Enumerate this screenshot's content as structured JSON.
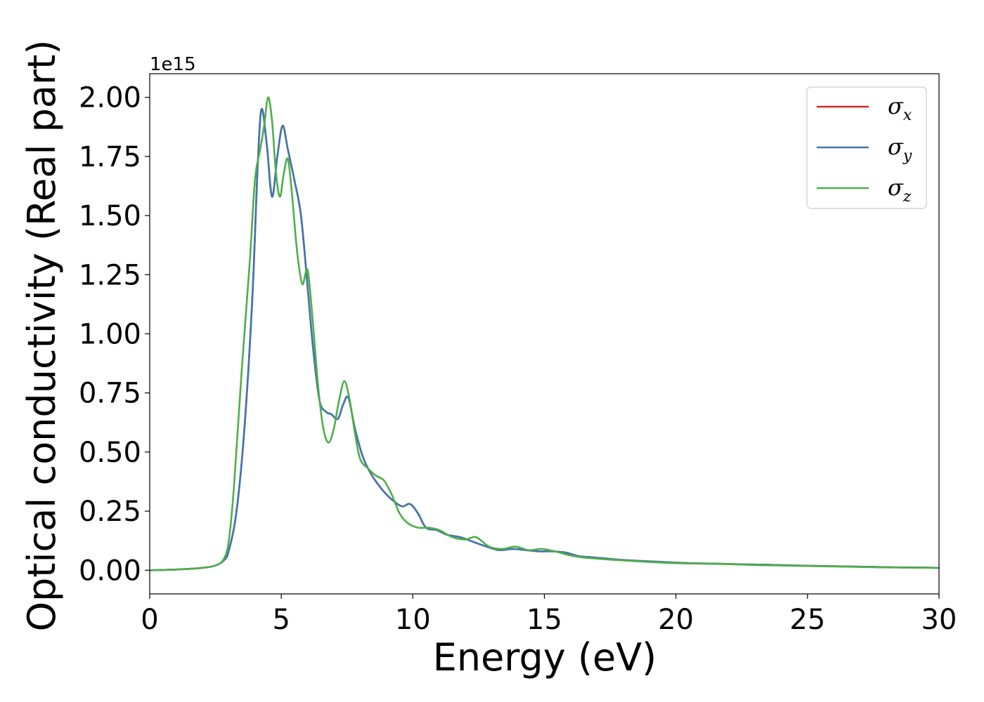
{
  "chart_data": {
    "type": "line",
    "xlabel": "Energy (eV)",
    "ylabel": "Optical conductivity (Real part)",
    "y_offset_label": "1e15",
    "xlim": [
      0,
      30
    ],
    "ylim": [
      -0.1,
      2.1
    ],
    "x_ticks": [
      0,
      5,
      10,
      15,
      20,
      25,
      30
    ],
    "x_tick_labels": [
      "0",
      "5",
      "10",
      "15",
      "20",
      "25",
      "30"
    ],
    "y_ticks": [
      0.0,
      0.25,
      0.5,
      0.75,
      1.0,
      1.25,
      1.5,
      1.75,
      2.0
    ],
    "y_tick_labels": [
      "0.00",
      "0.25",
      "0.50",
      "0.75",
      "1.00",
      "1.25",
      "1.50",
      "1.75",
      "2.00"
    ],
    "grid": false,
    "legend_position": "top-right",
    "series": [
      {
        "name": "σx",
        "legend_main": "σ",
        "legend_sub": "x",
        "color": "#d62728",
        "x": [
          0,
          1,
          2,
          2.5,
          2.8,
          3.0,
          3.3,
          3.6,
          3.9,
          4.1,
          4.25,
          4.45,
          4.65,
          4.85,
          5.05,
          5.25,
          5.5,
          5.75,
          6.0,
          6.2,
          6.45,
          6.7,
          6.9,
          7.15,
          7.35,
          7.55,
          7.8,
          8.1,
          8.4,
          8.7,
          9.0,
          9.3,
          9.6,
          9.9,
          10.2,
          10.5,
          10.9,
          11.3,
          11.8,
          12.3,
          12.8,
          13.3,
          13.8,
          14.3,
          14.8,
          15.3,
          15.8,
          16.3,
          16.8,
          17.3,
          17.8,
          18.5,
          19.5,
          20.5,
          21.5,
          22.5,
          23.5,
          24.5,
          25.5,
          26.5,
          27.5,
          28.5,
          29.5,
          30
        ],
        "values": [
          0,
          0.003,
          0.01,
          0.02,
          0.04,
          0.08,
          0.25,
          0.6,
          1.15,
          1.7,
          1.95,
          1.8,
          1.58,
          1.75,
          1.88,
          1.78,
          1.65,
          1.5,
          1.2,
          0.95,
          0.72,
          0.67,
          0.66,
          0.64,
          0.7,
          0.73,
          0.6,
          0.48,
          0.41,
          0.36,
          0.32,
          0.29,
          0.27,
          0.28,
          0.24,
          0.18,
          0.17,
          0.15,
          0.14,
          0.12,
          0.1,
          0.085,
          0.09,
          0.085,
          0.08,
          0.08,
          0.075,
          0.06,
          0.055,
          0.05,
          0.045,
          0.04,
          0.035,
          0.03,
          0.028,
          0.025,
          0.023,
          0.02,
          0.018,
          0.016,
          0.014,
          0.012,
          0.011,
          0.01
        ]
      },
      {
        "name": "σy",
        "legend_main": "σ",
        "legend_sub": "y",
        "color": "#3f77b0",
        "x": [
          0,
          1,
          2,
          2.5,
          2.8,
          3.0,
          3.3,
          3.6,
          3.9,
          4.1,
          4.25,
          4.45,
          4.65,
          4.85,
          5.05,
          5.25,
          5.5,
          5.75,
          6.0,
          6.2,
          6.45,
          6.7,
          6.9,
          7.15,
          7.35,
          7.55,
          7.8,
          8.1,
          8.4,
          8.7,
          9.0,
          9.3,
          9.6,
          9.9,
          10.2,
          10.5,
          10.9,
          11.3,
          11.8,
          12.3,
          12.8,
          13.3,
          13.8,
          14.3,
          14.8,
          15.3,
          15.8,
          16.3,
          16.8,
          17.3,
          17.8,
          18.5,
          19.5,
          20.5,
          21.5,
          22.5,
          23.5,
          24.5,
          25.5,
          26.5,
          27.5,
          28.5,
          29.5,
          30
        ],
        "values": [
          0,
          0.003,
          0.01,
          0.02,
          0.04,
          0.08,
          0.25,
          0.6,
          1.15,
          1.7,
          1.95,
          1.8,
          1.58,
          1.75,
          1.88,
          1.78,
          1.65,
          1.5,
          1.2,
          0.95,
          0.72,
          0.67,
          0.66,
          0.64,
          0.7,
          0.73,
          0.6,
          0.48,
          0.41,
          0.36,
          0.32,
          0.29,
          0.27,
          0.28,
          0.24,
          0.18,
          0.17,
          0.15,
          0.14,
          0.12,
          0.1,
          0.085,
          0.09,
          0.085,
          0.08,
          0.08,
          0.075,
          0.06,
          0.055,
          0.05,
          0.045,
          0.04,
          0.035,
          0.03,
          0.028,
          0.025,
          0.023,
          0.02,
          0.018,
          0.016,
          0.014,
          0.012,
          0.011,
          0.01
        ]
      },
      {
        "name": "σz",
        "legend_main": "σ",
        "legend_sub": "z",
        "color": "#4daf4a",
        "x": [
          0,
          1,
          2,
          2.5,
          2.8,
          3.0,
          3.2,
          3.5,
          3.8,
          4.0,
          4.2,
          4.35,
          4.5,
          4.65,
          4.8,
          4.95,
          5.1,
          5.25,
          5.4,
          5.6,
          5.8,
          6.0,
          6.2,
          6.4,
          6.6,
          6.8,
          7.0,
          7.2,
          7.4,
          7.6,
          7.8,
          8.0,
          8.3,
          8.6,
          8.9,
          9.2,
          9.5,
          9.8,
          10.2,
          10.6,
          11.0,
          11.5,
          12.0,
          12.4,
          12.9,
          13.4,
          13.9,
          14.4,
          14.9,
          15.4,
          15.9,
          16.4,
          16.9,
          17.5,
          18.2,
          19.0,
          20.0,
          21.0,
          22.0,
          23.0,
          24.0,
          25.0,
          26.0,
          27.0,
          28.0,
          29.0,
          30
        ],
        "values": [
          0,
          0.003,
          0.01,
          0.02,
          0.045,
          0.12,
          0.35,
          0.85,
          1.3,
          1.65,
          1.78,
          1.88,
          2.0,
          1.9,
          1.68,
          1.58,
          1.68,
          1.74,
          1.6,
          1.35,
          1.21,
          1.27,
          1.05,
          0.78,
          0.6,
          0.54,
          0.6,
          0.72,
          0.8,
          0.72,
          0.58,
          0.47,
          0.43,
          0.4,
          0.38,
          0.32,
          0.24,
          0.2,
          0.18,
          0.18,
          0.17,
          0.14,
          0.13,
          0.14,
          0.1,
          0.09,
          0.1,
          0.085,
          0.09,
          0.08,
          0.065,
          0.055,
          0.05,
          0.045,
          0.04,
          0.035,
          0.03,
          0.028,
          0.026,
          0.022,
          0.02,
          0.018,
          0.016,
          0.014,
          0.012,
          0.011,
          0.01
        ]
      }
    ]
  }
}
